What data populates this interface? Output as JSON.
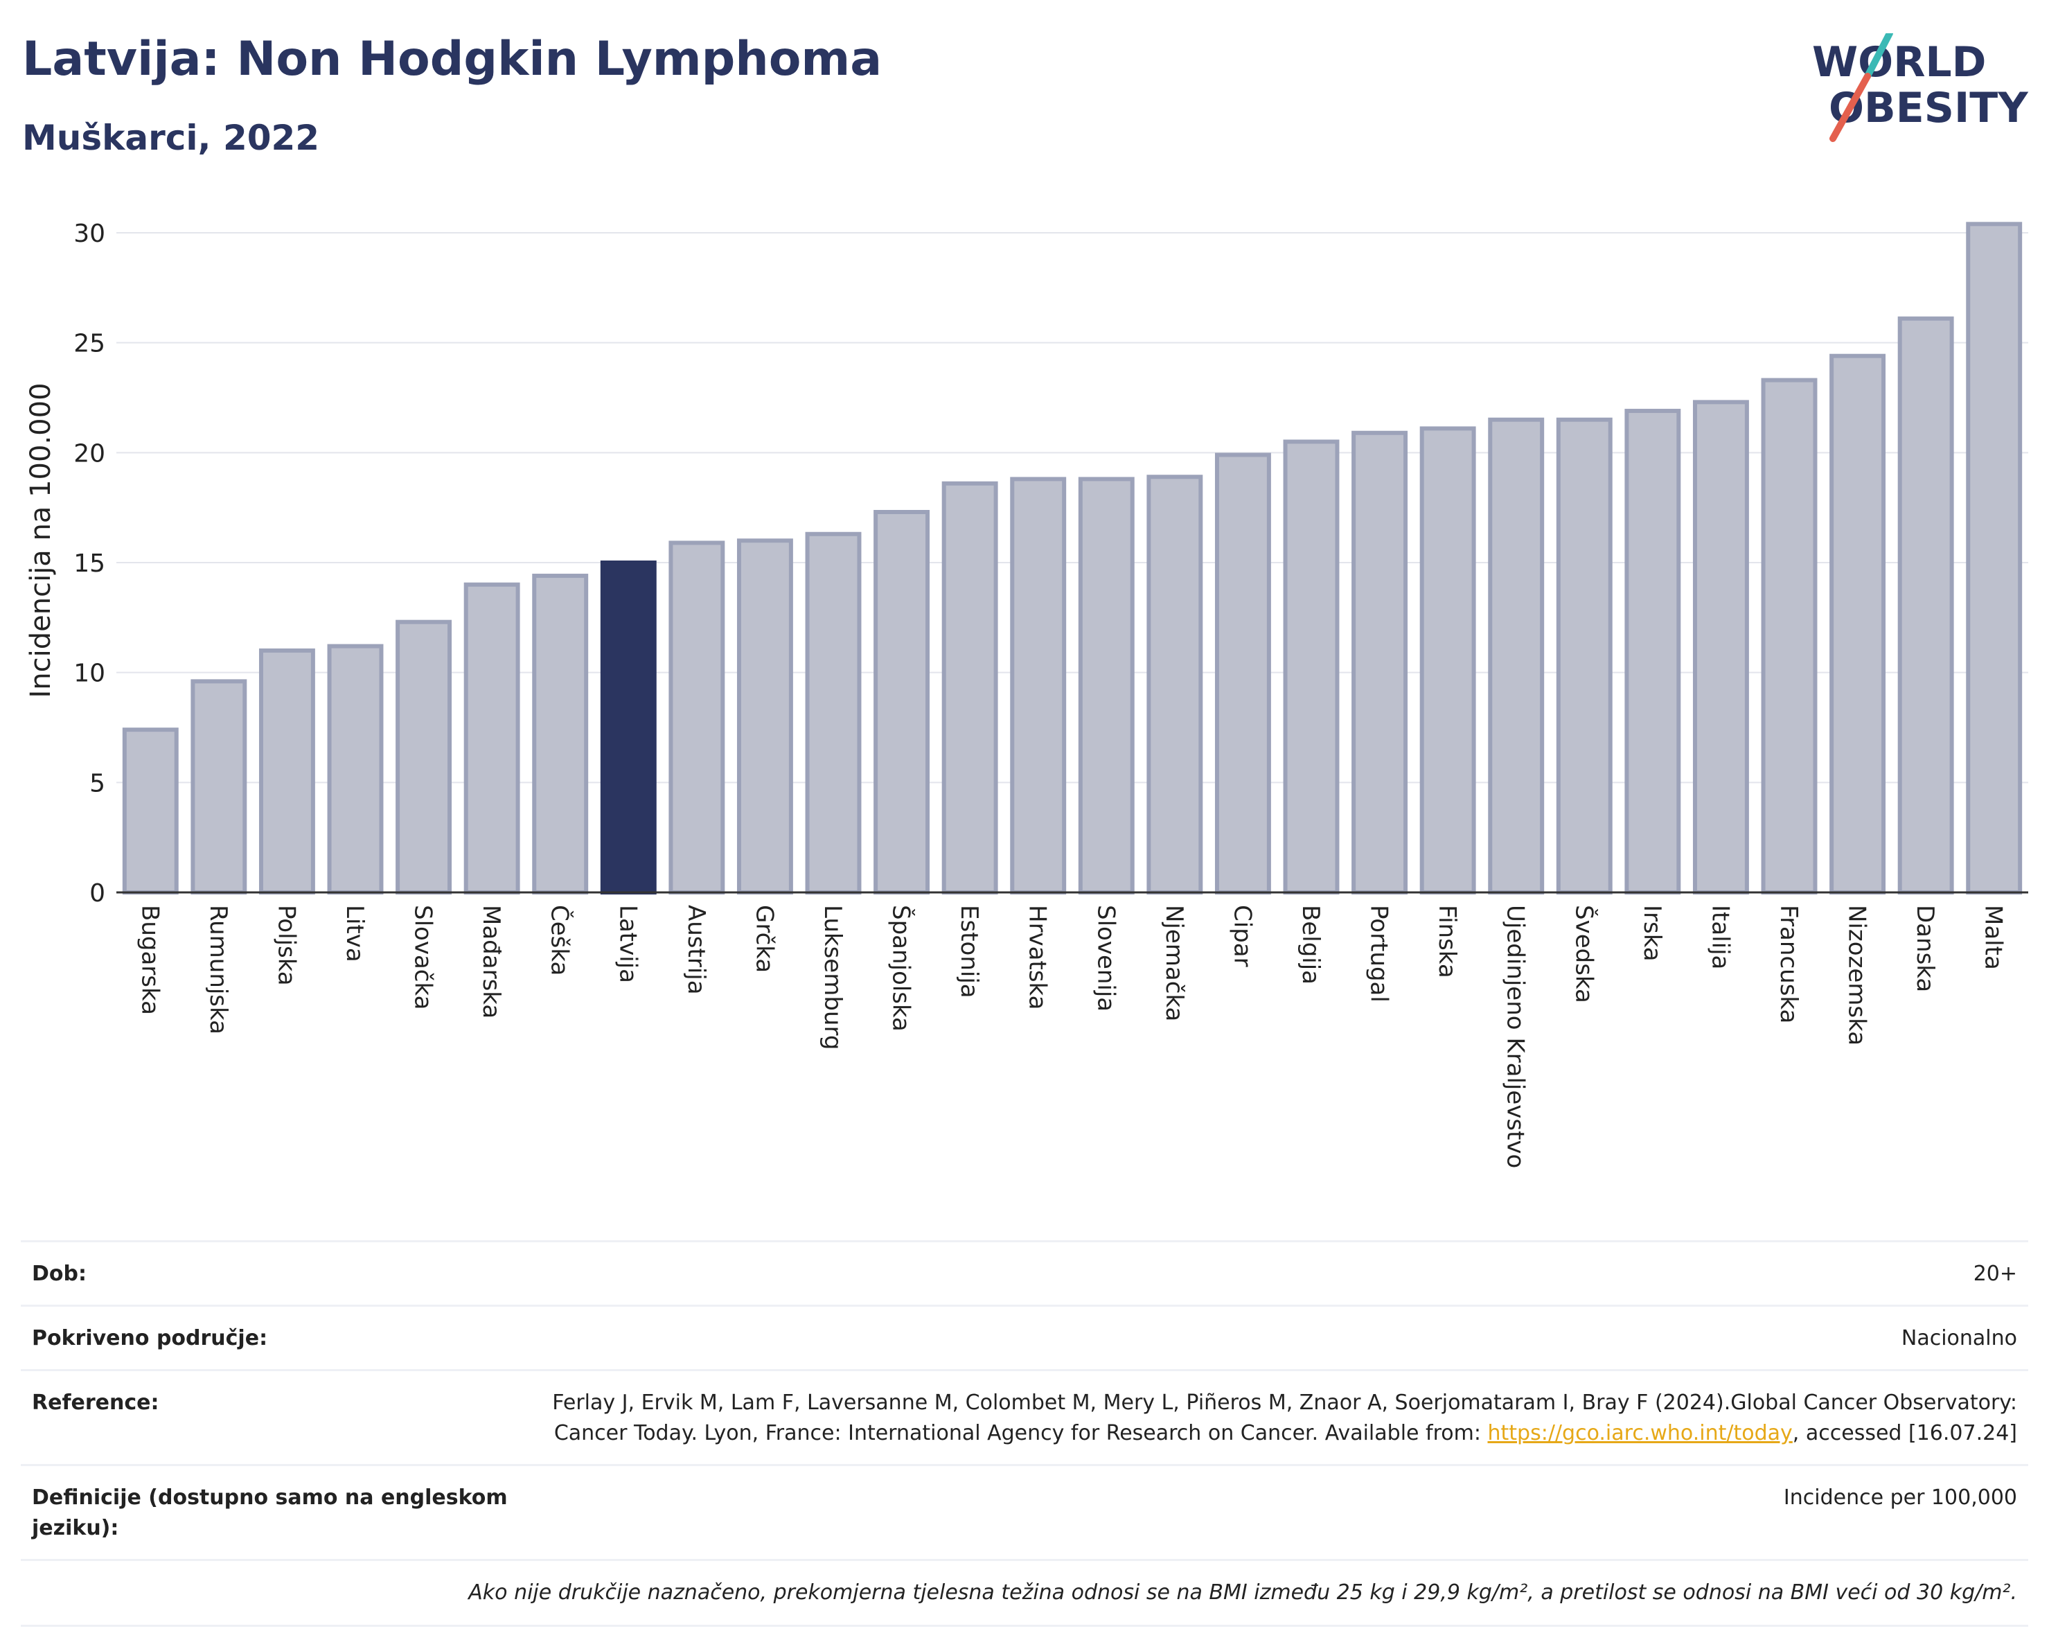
{
  "header": {
    "title": "Latvija: Non Hodgkin Lymphoma",
    "subtitle": "Muškarci, 2022"
  },
  "logo": {
    "line1": "WORLD",
    "line2": "OBESITY",
    "accent_teal": "#3bb9b5",
    "accent_red": "#e4604e"
  },
  "colors": {
    "bar": "#bdc0cd",
    "bar_border": "#9ca2b9",
    "highlight": "#2b3560",
    "grid": "#e3e5ec",
    "text": "#2a3560"
  },
  "chart_data": {
    "type": "bar",
    "ylabel": "Incidencija na 100.000",
    "ylim": [
      0,
      30
    ],
    "yticks": [
      0,
      5,
      10,
      15,
      20,
      25,
      30
    ],
    "highlight": "Latvija",
    "categories": [
      "Bugarska",
      "Rumunjska",
      "Poljska",
      "Litva",
      "Slovačka",
      "Mađarska",
      "Češka",
      "Latvija",
      "Austrija",
      "Grčka",
      "Luksemburg",
      "Španjolska",
      "Estonija",
      "Hrvatska",
      "Slovenija",
      "Njemačka",
      "Cipar",
      "Belgija",
      "Portugal",
      "Finska",
      "Ujedinjeno Kraljevstvo",
      "Švedska",
      "Irska",
      "Italija",
      "Francuska",
      "Nizozemska",
      "Danska",
      "Malta"
    ],
    "values": [
      7.4,
      9.6,
      11.0,
      11.2,
      12.3,
      14.0,
      14.4,
      15.0,
      15.9,
      16.0,
      16.3,
      17.3,
      18.6,
      18.8,
      18.8,
      18.9,
      19.9,
      20.5,
      20.9,
      21.1,
      21.5,
      21.5,
      21.9,
      22.3,
      23.3,
      24.4,
      26.1,
      30.4
    ]
  },
  "info": {
    "age_label": "Dob:",
    "age_value": "20+",
    "coverage_label": "Pokriveno područje:",
    "coverage_value": "Nacionalno",
    "reference_label": "Reference:",
    "reference_text": "Ferlay J, Ervik M, Lam F, Laversanne M, Colombet M, Mery L, Piñeros M, Znaor A, Soerjomataram I, Bray F (2024).Global Cancer Observatory: Cancer Today. Lyon, France: International Agency for Research on Cancer. Available from:",
    "reference_link": "https://gco.iarc.who.int/today",
    "reference_suffix": ", accessed [16.07.24]",
    "definitions_label": "Definicije (dostupno samo na engleskom jeziku):",
    "definitions_value": "Incidence per 100,000",
    "note": "Ako nije drukčije naznačeno, prekomjerna tjelesna težina odnosi se na BMI između 25 kg i 29,9 kg/m², a pretilost se odnosi na BMI veći od 30 kg/m²."
  }
}
